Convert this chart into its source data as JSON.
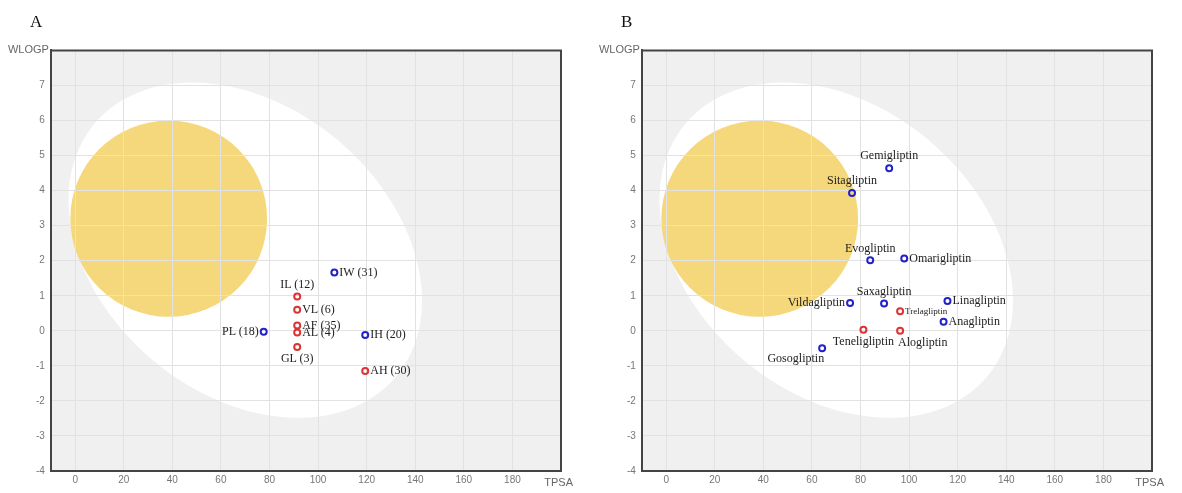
{
  "chart_data": [
    {
      "type": "scatter",
      "title": "A",
      "xlabel": "TPSA",
      "ylabel": "WLOGP",
      "xlim": [
        -10,
        200
      ],
      "ylim": [
        -4,
        8
      ],
      "xticks": [
        0,
        20,
        40,
        60,
        80,
        100,
        120,
        140,
        160,
        180
      ],
      "yticks": [
        -4,
        -3,
        -2,
        -1,
        0,
        1,
        2,
        3,
        4,
        5,
        6,
        7
      ],
      "grid": true,
      "marker": "circle",
      "series": [
        {
          "color": "#2222cc",
          "x": [
            106.7,
            77.6,
            119.4
          ],
          "values": [
            1.66,
            -0.03,
            -0.12
          ]
        },
        {
          "color": "#dd3333",
          "x": [
            91.4,
            91.4,
            91.4,
            91.4,
            91.4,
            119.4
          ],
          "values": [
            0.98,
            0.6,
            0.15,
            -0.05,
            -0.46,
            -1.15
          ]
        }
      ],
      "annotations": [
        {
          "text": "IW (31)",
          "x": 106.7,
          "y": 1.66
        },
        {
          "text": "IL (12)",
          "x": 91.4,
          "y": 0.98
        },
        {
          "text": "VL (6)",
          "x": 91.4,
          "y": 0.6
        },
        {
          "text": "AF (35)",
          "x": 91.4,
          "y": 0.15
        },
        {
          "text": "AL (4)",
          "x": 91.4,
          "y": -0.05
        },
        {
          "text": "GL (3)",
          "x": 91.4,
          "y": -0.46
        },
        {
          "text": "PL (18)",
          "x": 77.6,
          "y": -0.03
        },
        {
          "text": "IH (20)",
          "x": 119.4,
          "y": -0.12
        },
        {
          "text": "AH (30)",
          "x": 119.4,
          "y": -1.15
        }
      ]
    },
    {
      "type": "scatter",
      "title": "B",
      "xlabel": "TPSA",
      "ylabel": "WLOGP",
      "xlim": [
        -10,
        200
      ],
      "ylim": [
        -4,
        8
      ],
      "xticks": [
        0,
        20,
        40,
        60,
        80,
        100,
        120,
        140,
        160,
        180
      ],
      "yticks": [
        -4,
        -3,
        -2,
        -1,
        0,
        1,
        2,
        3,
        4,
        5,
        6,
        7
      ],
      "grid": true,
      "marker": "circle",
      "series": [
        {
          "color": "#2222cc",
          "x": [
            91.8,
            76.5,
            84,
            98,
            75.7,
            89.7,
            115.8,
            114.2,
            64.2
          ],
          "values": [
            4.64,
            3.93,
            2.01,
            2.06,
            0.79,
            0.78,
            0.85,
            0.26,
            -0.5
          ]
        },
        {
          "color": "#dd3333",
          "x": [
            96.3,
            81.2,
            96.3
          ],
          "values": [
            0.56,
            0.03,
            0.0
          ]
        }
      ],
      "annotations": [
        {
          "text": "Gemigliptin",
          "x": 91.8,
          "y": 4.64
        },
        {
          "text": "Sitagliptin",
          "x": 76.5,
          "y": 3.93
        },
        {
          "text": "Evogliptin",
          "x": 84,
          "y": 2.01
        },
        {
          "text": "Omarigliptin",
          "x": 98,
          "y": 2.06
        },
        {
          "text": "Vildagliptin",
          "x": 75.7,
          "y": 0.79
        },
        {
          "text": "Saxagliptin",
          "x": 89.7,
          "y": 0.78
        },
        {
          "text": "Linagliptin",
          "x": 115.8,
          "y": 0.85
        },
        {
          "text": "Anagliptin",
          "x": 114.2,
          "y": 0.26
        },
        {
          "text": "Gosogliptin",
          "x": 64.2,
          "y": -0.5
        },
        {
          "text": "Trelagliptin",
          "x": 96.3,
          "y": 0.56
        },
        {
          "text": "Teneligliptin",
          "x": 81.2,
          "y": 0.03
        },
        {
          "text": "Alogliptin",
          "x": 96.3,
          "y": 0.0
        }
      ]
    }
  ]
}
